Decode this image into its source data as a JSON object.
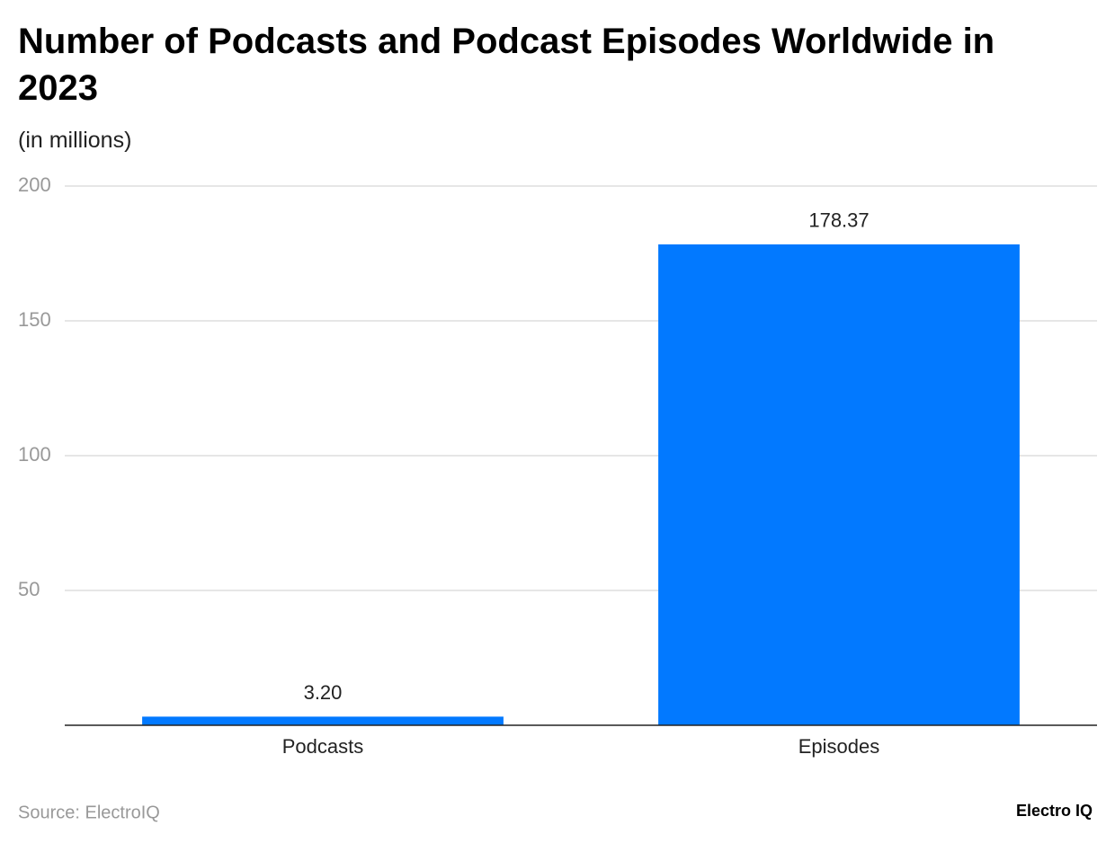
{
  "chart_data": {
    "type": "bar",
    "title": "Number of Podcasts and Podcast Episodes Worldwide in 2023",
    "subtitle": "(in millions)",
    "categories": [
      "Podcasts",
      "Episodes"
    ],
    "values": [
      3.2,
      178.37
    ],
    "value_labels": [
      "3.20",
      "178.37"
    ],
    "color": "#0279ff",
    "ylim": [
      0,
      200
    ],
    "yticks": [
      50,
      100,
      150,
      200
    ],
    "grid": true,
    "source": "Source: ElectroIQ",
    "logo": "Electro IQ"
  }
}
